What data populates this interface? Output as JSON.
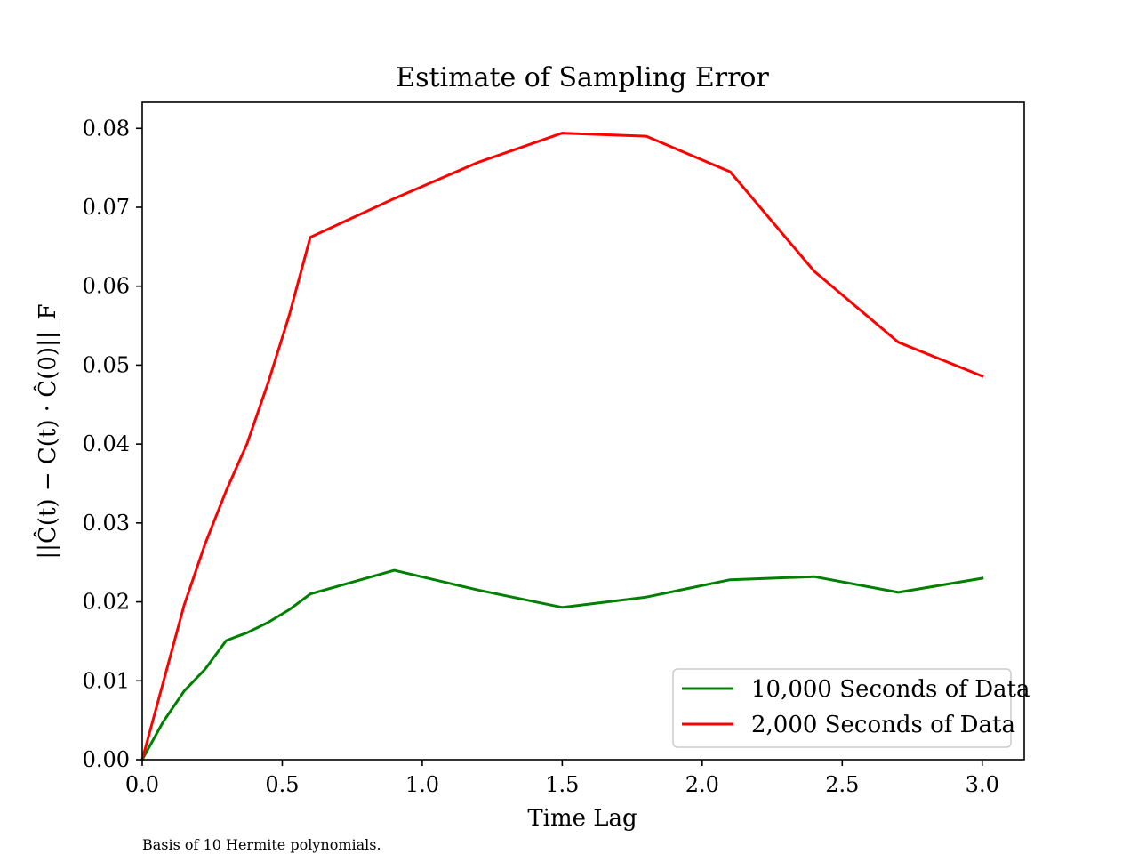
{
  "chart_data": {
    "type": "line",
    "title": "Estimate of Sampling Error",
    "xlabel": "Time Lag",
    "ylabel": "||Ĉ(t) − C(t) · Ĉ(0)||_F",
    "caption": "Basis of 10 Hermite polynomials.",
    "xlim": [
      0.0,
      3.15
    ],
    "ylim": [
      0.0,
      0.0833
    ],
    "xticks": [
      0.0,
      0.5,
      1.0,
      1.5,
      2.0,
      2.5,
      3.0
    ],
    "xtick_labels": [
      "0.0",
      "0.5",
      "1.0",
      "1.5",
      "2.0",
      "2.5",
      "3.0"
    ],
    "yticks": [
      0.0,
      0.01,
      0.02,
      0.03,
      0.04,
      0.05,
      0.06,
      0.07,
      0.08
    ],
    "ytick_labels": [
      "0.00",
      "0.01",
      "0.02",
      "0.03",
      "0.04",
      "0.05",
      "0.06",
      "0.07",
      "0.08"
    ],
    "grid": false,
    "legend_position": "lower-right",
    "series": [
      {
        "name": "10,000 Seconds of Data",
        "color": "#008000",
        "x": [
          0.0,
          0.075,
          0.15,
          0.225,
          0.3,
          0.375,
          0.45,
          0.525,
          0.6,
          0.9,
          1.2,
          1.5,
          1.8,
          2.1,
          2.4,
          2.7,
          3.0
        ],
        "y": [
          0.0,
          0.0048,
          0.0087,
          0.0115,
          0.0151,
          0.0161,
          0.0174,
          0.019,
          0.021,
          0.024,
          0.0215,
          0.0193,
          0.0206,
          0.0228,
          0.0232,
          0.0212,
          0.023
        ]
      },
      {
        "name": "2,000 Seconds of Data",
        "color": "#ff0000",
        "x": [
          0.0,
          0.075,
          0.15,
          0.225,
          0.3,
          0.375,
          0.45,
          0.525,
          0.6,
          0.9,
          1.2,
          1.5,
          1.8,
          2.1,
          2.4,
          2.7,
          3.0
        ],
        "y": [
          0.0,
          0.0098,
          0.0196,
          0.0274,
          0.0341,
          0.0401,
          0.0478,
          0.0563,
          0.0662,
          0.0711,
          0.0757,
          0.0794,
          0.079,
          0.0745,
          0.0619,
          0.0529,
          0.0486
        ]
      }
    ]
  }
}
